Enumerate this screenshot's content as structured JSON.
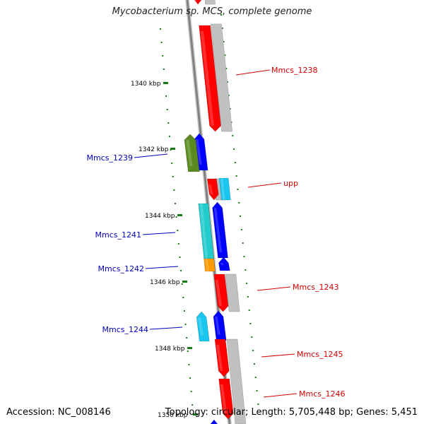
{
  "title": "Mycobacterium sp. MCS, complete genome",
  "footer": {
    "accession": "Accession: NC_008146",
    "summary": "Topology: circular; Length: 5,705,448 bp; Genes: 5,451"
  },
  "colors": {
    "backbone": "#808080",
    "tick": "#1a7a1a",
    "forward_label": "#d40000",
    "reverse_label": "#0000b8"
  },
  "ticks": [
    {
      "label": "1340 kbp"
    },
    {
      "label": "1342 kbp"
    },
    {
      "label": "1344 kbp"
    },
    {
      "label": "1346 kbp"
    },
    {
      "label": "1348 kbp"
    },
    {
      "label": "1350 kbp"
    }
  ],
  "genes": [
    {
      "name": "",
      "strand": "forward",
      "color": "#ff0000"
    },
    {
      "name": "Mmcs_1238",
      "strand": "forward",
      "color": "#ff0000"
    },
    {
      "name": "Mmcs_1239",
      "strand": "reverse",
      "color": "#5a8a1e"
    },
    {
      "name": "upp",
      "strand": "forward",
      "color": "#ff0000"
    },
    {
      "name": "Mmcs_1241",
      "strand": "reverse",
      "color": "#22cccc"
    },
    {
      "name": "Mmcs_1242",
      "strand": "reverse",
      "color": "#ff9900"
    },
    {
      "name": "Mmcs_1243",
      "strand": "forward",
      "color": "#ff0000"
    },
    {
      "name": "Mmcs_1244",
      "strand": "reverse",
      "color": "#19c6f0"
    },
    {
      "name": "Mmcs_1245",
      "strand": "forward",
      "color": "#ff0000"
    },
    {
      "name": "Mmcs_1246",
      "strand": "forward",
      "color": "#ff0000"
    },
    {
      "name": "",
      "strand": "reverse",
      "color": "#0000ff"
    }
  ]
}
